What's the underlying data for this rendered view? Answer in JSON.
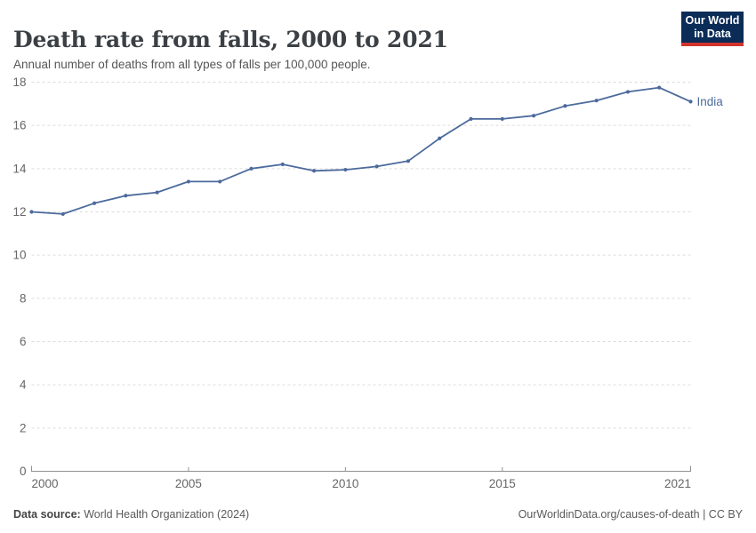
{
  "header": {
    "title": "Death rate from falls, 2000 to 2021",
    "subtitle": "Annual number of deaths from all types of falls per 100,000 people."
  },
  "logo": {
    "line1": "Our World",
    "line2": "in Data",
    "bg_color": "#0a2c57",
    "accent_color": "#d0342c"
  },
  "chart_data": {
    "type": "line",
    "title": "Death rate from falls, 2000 to 2021",
    "xlabel": "",
    "ylabel": "",
    "x": [
      2000,
      2001,
      2002,
      2003,
      2004,
      2005,
      2006,
      2007,
      2008,
      2009,
      2010,
      2011,
      2012,
      2013,
      2014,
      2015,
      2016,
      2017,
      2018,
      2019,
      2020,
      2021
    ],
    "series": [
      {
        "name": "India",
        "color": "#4c6a9c",
        "values": [
          12.0,
          11.9,
          12.4,
          12.75,
          12.9,
          13.4,
          13.4,
          14.0,
          14.2,
          13.9,
          13.95,
          14.1,
          14.35,
          15.4,
          16.3,
          16.3,
          16.45,
          16.9,
          17.15,
          17.55,
          17.75,
          17.1
        ]
      }
    ],
    "xlim": [
      2000,
      2021
    ],
    "ylim": [
      0,
      18
    ],
    "x_ticks": [
      2000,
      2005,
      2010,
      2015,
      2021
    ],
    "y_ticks": [
      0,
      2,
      4,
      6,
      8,
      10,
      12,
      14,
      16,
      18
    ],
    "grid": "horizontal-dashed",
    "legend_position": "end-of-line-label",
    "end_label": "India",
    "colors": {
      "gridline": "#dcdcdc",
      "axis": "#8f8f8f",
      "tick_label": "#666666"
    }
  },
  "footer": {
    "source_label": "Data source:",
    "source_text": " World Health Organization (2024)",
    "attribution": "OurWorldinData.org/causes-of-death | CC BY"
  }
}
